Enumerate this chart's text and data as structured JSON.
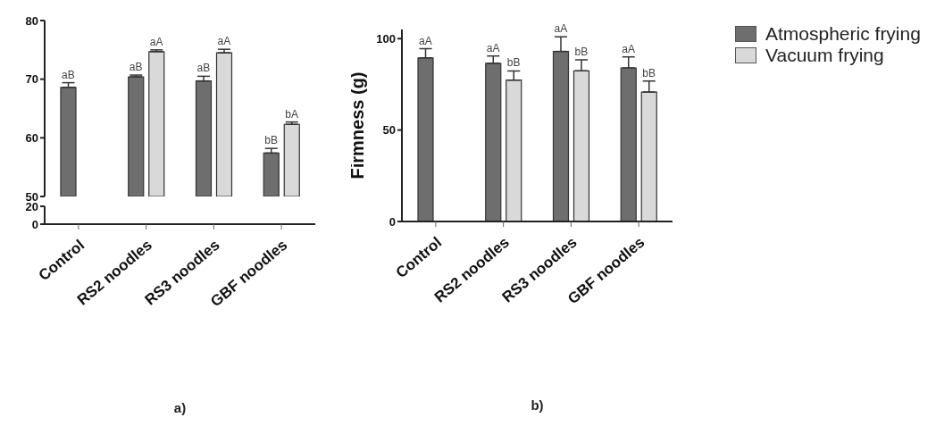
{
  "chart_data": [
    {
      "type": "bar",
      "categories": [
        "Control",
        "RS2 noodles",
        "RS3 noodles",
        "GBF noodles"
      ],
      "ylim": [
        50,
        80
      ],
      "yticks": [
        50,
        60,
        70,
        80
      ],
      "tick_labels": "y",
      "series": [
        {
          "color": "#6e6e6e",
          "values": [
            68.6,
            70.4,
            69.7,
            57.4
          ],
          "errors": [
            [
              68.6,
              69.4
            ],
            [
              70.4,
              70.7
            ],
            [
              69.7,
              70.5
            ],
            [
              57.4,
              58.2
            ]
          ]
        },
        {
          "color": "#d9d9d9",
          "values": [
            null,
            74.7,
            74.5,
            62.3
          ],
          "errors": [
            null,
            [
              74.7,
              75.0
            ],
            [
              74.5,
              75.1
            ],
            [
              62.3,
              62.7
            ]
          ]
        }
      ],
      "annotations": [
        {
          "text": "aB",
          "x": "Control",
          "y": 69.4
        },
        {
          "text": "aB",
          "x": "RS2 noodles",
          "y": 70.7
        },
        {
          "text": "aA",
          "x": "RS2 noodles",
          "y": 75.0
        },
        {
          "text": "aB",
          "x": "RS3 noodles",
          "y": 70.5
        },
        {
          "text": "aA",
          "x": "RS3 noodles",
          "y": 75.1
        },
        {
          "text": "bB",
          "x": "GBF noodles",
          "y": 58.2
        },
        {
          "text": "bA",
          "x": "GBF noodles",
          "y": 62.7
        }
      ]
    },
    {
      "type": "bar",
      "categories": [
        "Control",
        "RS2 noodles",
        "RS3 noodles",
        "GBF noodles"
      ],
      "ylim": [
        0,
        20
      ],
      "yticks": [
        0,
        20
      ],
      "annotations": [
        "a)"
      ]
    },
    {
      "type": "bar",
      "categories": [
        "Control",
        "RS2 noodles",
        "RS3 noodles",
        "GBF noodles"
      ],
      "ylabel": "Firmness (g)",
      "ylim": [
        0,
        105
      ],
      "yticks": [
        0,
        50,
        100
      ],
      "legend": "top right",
      "series": [
        {
          "name": "Atmospheric frying",
          "color": "#6e6e6e",
          "values": [
            89.5,
            86.5,
            93,
            84
          ],
          "errors": [
            [
              89.5,
              94.5
            ],
            [
              86.5,
              90.5
            ],
            [
              93,
              101
            ],
            [
              84,
              90
            ]
          ]
        },
        {
          "name": "Vacuum frying",
          "color": "#d9d9d9",
          "values": [
            null,
            77.3,
            82.4,
            70.8
          ],
          "errors": [
            null,
            [
              77.3,
              82.3
            ],
            [
              82.4,
              88.4
            ],
            [
              70.8,
              76.8
            ]
          ]
        }
      ],
      "annotations": [
        {
          "text": "aA",
          "x": "Control",
          "y": 94.5
        },
        {
          "text": "aA",
          "x": "RS2 noodles",
          "y": 90.5
        },
        {
          "text": "bB",
          "x": "RS2 noodles",
          "y": 82.3
        },
        {
          "text": "aA",
          "x": "RS3 noodles",
          "y": 101
        },
        {
          "text": "bB",
          "x": "RS3 noodles",
          "y": 88.4
        },
        {
          "text": "aA",
          "x": "GBF noodles",
          "y": 90
        },
        {
          "text": "bB",
          "x": "GBF noodles",
          "y": 76.8
        },
        "b)"
      ]
    }
  ]
}
